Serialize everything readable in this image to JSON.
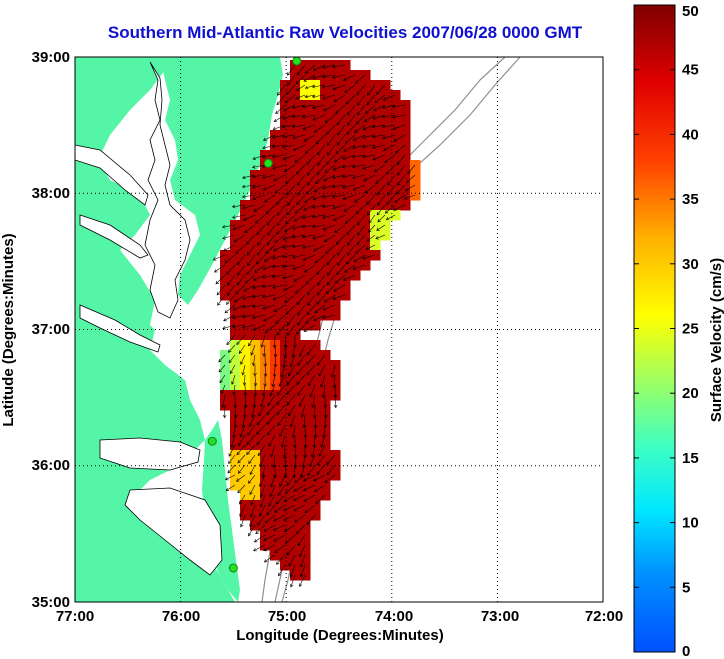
{
  "title": "Southern Mid-Atlantic Raw Velocities 2007/06/28 0000 GMT",
  "x_axis": {
    "label": "Longitude (Degrees:Minutes)",
    "ticks": [
      "77:00",
      "76:00",
      "75:00",
      "74:00",
      "73:00",
      "72:00"
    ]
  },
  "y_axis": {
    "label": "Latitude (Degrees:Minutes)",
    "ticks": [
      "39:00",
      "38:00",
      "37:00",
      "36:00",
      "35:00"
    ]
  },
  "colorbar": {
    "label": "Surface Velocity (cm/s)",
    "ticks": [
      "50",
      "45",
      "40",
      "35",
      "30",
      "25",
      "20",
      "15",
      "10",
      "5",
      "0"
    ],
    "range": [
      0,
      50
    ],
    "colormap": "jet"
  },
  "colors": {
    "title": "#1010d0",
    "land": "#55f5a8",
    "water": "#ffffff",
    "velocity_high": "#800000",
    "velocity_mid": "#ff3000",
    "velocity_low": "#ffff40",
    "station": "#22e022",
    "arrow": "#000000"
  },
  "chart_data": {
    "type": "heatmap",
    "title": "Southern Mid-Atlantic Raw Velocities 2007/06/28 0000 GMT",
    "xlabel": "Longitude (Degrees:Minutes)",
    "ylabel": "Latitude (Degrees:Minutes)",
    "xlim": [
      -77,
      -72
    ],
    "ylim": [
      35,
      39
    ],
    "grid": true,
    "colorbar_label": "Surface Velocity (cm/s)",
    "colorbar_range": [
      0,
      50
    ],
    "stations": [
      {
        "lon": -74.9,
        "lat": 38.97
      },
      {
        "lon": -75.17,
        "lat": 38.22
      },
      {
        "lon": -75.7,
        "lat": 36.18
      },
      {
        "lon": -75.5,
        "lat": 35.25
      }
    ]
  }
}
